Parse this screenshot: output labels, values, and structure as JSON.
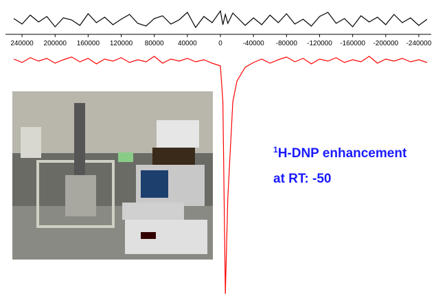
{
  "chart_data": {
    "type": "line",
    "x": [
      250000,
      240000,
      230000,
      220000,
      210000,
      200000,
      190000,
      180000,
      170000,
      160000,
      150000,
      140000,
      130000,
      120000,
      110000,
      100000,
      90000,
      80000,
      70000,
      60000,
      50000,
      40000,
      30000,
      20000,
      10000,
      0,
      -3000,
      -6000,
      -9000,
      -15000,
      -20000,
      -30000,
      -40000,
      -50000,
      -60000,
      -70000,
      -80000,
      -90000,
      -100000,
      -110000,
      -120000,
      -130000,
      -140000,
      -150000,
      -160000,
      -170000,
      -180000,
      -190000,
      -200000,
      -210000,
      -220000,
      -230000,
      -240000,
      -250000
    ],
    "xlim": [
      260000,
      -255000
    ],
    "xticks": [
      240000,
      200000,
      160000,
      120000,
      80000,
      40000,
      0,
      -40000,
      -80000,
      -120000,
      -160000,
      -200000,
      -240000
    ],
    "series": [
      {
        "color": "#000000",
        "values": [
          3,
          -5,
          8,
          -2,
          6,
          -9,
          4,
          1,
          -7,
          10,
          -3,
          5,
          -6,
          2,
          9,
          -4,
          -8,
          3,
          7,
          -5,
          1,
          12,
          -10,
          6,
          -3,
          14,
          -6,
          9,
          -4,
          11,
          5,
          -7,
          4,
          -6,
          8,
          -3,
          10,
          -5,
          2,
          -8,
          6,
          12,
          -4,
          3,
          -9,
          7,
          -2,
          5,
          -6,
          9,
          -3,
          4,
          -7,
          2
        ]
      },
      {
        "color": "#ff0000",
        "values": [
          2,
          -3,
          4,
          -1,
          3,
          -4,
          1,
          5,
          -2,
          3,
          -5,
          2,
          -1,
          4,
          -3,
          1,
          -2,
          6,
          -4,
          2,
          -1,
          3,
          -2,
          1,
          -4,
          -8,
          -60,
          -340,
          -200,
          -60,
          -30,
          -10,
          -3,
          2,
          -4,
          1,
          5,
          -2,
          3,
          -5,
          2,
          -1,
          4,
          -3,
          1,
          -2,
          6,
          -4,
          2,
          -1,
          3,
          -2,
          1,
          -3
        ]
      }
    ],
    "grid": false,
    "annotations": [
      {
        "superscript": "1",
        "text": "H-DNP enhancement"
      },
      {
        "text": "at RT: -50"
      }
    ]
  }
}
